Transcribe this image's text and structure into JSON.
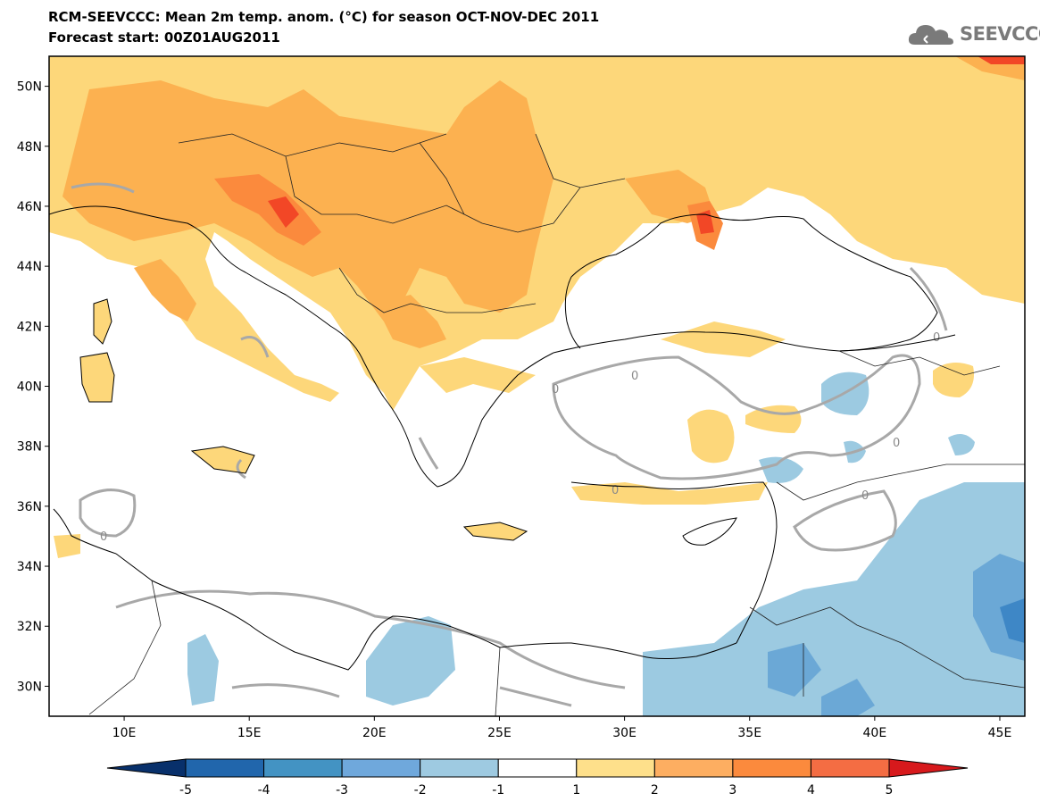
{
  "header": {
    "title": "RCM-SEEVCCC: Mean 2m temp. anom. (°C) for season OCT-NOV-DEC 2011",
    "subtitle": "Forecast start: 00Z01AUG2011"
  },
  "logo": {
    "text": "SEEVCCC"
  },
  "map": {
    "lon_range": [
      7,
      46
    ],
    "lat_range": [
      29,
      51
    ],
    "lat_labels": [
      "50N",
      "48N",
      "46N",
      "44N",
      "42N",
      "40N",
      "38N",
      "36N",
      "34N",
      "32N",
      "30N"
    ],
    "lat_values": [
      50,
      48,
      46,
      44,
      42,
      40,
      38,
      36,
      34,
      32,
      30
    ],
    "lon_labels": [
      "10E",
      "15E",
      "20E",
      "25E",
      "30E",
      "35E",
      "40E",
      "45E"
    ],
    "lon_values": [
      10,
      15,
      20,
      25,
      30,
      35,
      40,
      45
    ],
    "contour_label": "0",
    "colors": {
      "sea": "#ffffff",
      "anom_1_2": "#fdd77a",
      "anom_2_3": "#fcb150",
      "anom_3_4": "#fb8a3d",
      "anom_4_5": "#f24726",
      "anom_m1_m2": "#9ccae1",
      "anom_m2_m3": "#6ba8d6",
      "anom_m3_m4": "#3e87c6",
      "zero_contour": "#a8a8a8"
    }
  },
  "colorbar": {
    "labels": [
      "-5",
      "-4",
      "-3",
      "-2",
      "-1",
      "1",
      "2",
      "3",
      "4",
      "5"
    ],
    "colors": [
      "#08306b",
      "#2166ac",
      "#4393c3",
      "#6fa8dc",
      "#9ecae1",
      "#ffffff",
      "#fee08b",
      "#fdae61",
      "#fb8a3d",
      "#f46d43",
      "#d7191c"
    ]
  }
}
